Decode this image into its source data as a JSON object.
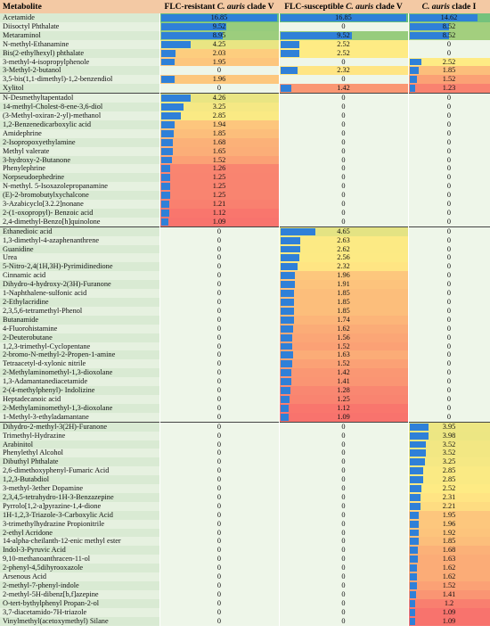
{
  "headers": {
    "metabolite": "Metabolite",
    "col1": "FLC-resistant C. auris clade V",
    "col2": "FLC-susceptible C. auris clade V",
    "col3": "C. auris clade I"
  },
  "max_value": 16.85,
  "rows": [
    {
      "name": "Acetamide",
      "v": [
        "16.85",
        "16.85",
        "14.62"
      ]
    },
    {
      "name": "Diisoctyl Phthalate",
      "v": [
        "9.52",
        "0",
        "8.52"
      ]
    },
    {
      "name": "Metaraminol",
      "v": [
        "8.95",
        "9.52",
        "8.52"
      ]
    },
    {
      "name": "N-methyl-Ethanamine",
      "v": [
        "4.25",
        "2.52",
        "0"
      ]
    },
    {
      "name": "Bis(2-ethylhexyl) phthalate",
      "v": [
        "2.03",
        "2.52",
        "0"
      ]
    },
    {
      "name": "3-methyl-4-isopropylphenole",
      "v": [
        "1.95",
        "0",
        "2.52"
      ]
    },
    {
      "name": "3-Methyl-2-butanol",
      "v": [
        "0",
        "2.32",
        "1.85"
      ]
    },
    {
      "name": "3,5-bis(1,1-dimethyl)-1,2-benzendiol",
      "v": [
        "1.96",
        "0",
        "1.52"
      ]
    },
    {
      "name": "Xylitol",
      "v": [
        "0",
        "1.42",
        "1.23"
      ]
    },
    {
      "name": "N-Desmethyltapentadol",
      "v": [
        "4.26",
        "0",
        "0"
      ]
    },
    {
      "name": "14-methyl-Cholest-8-ene-3,6-diol",
      "v": [
        "3.25",
        "0",
        "0"
      ]
    },
    {
      "name": "(3-Methyl-oxiran-2-yl)-methanol",
      "v": [
        "2.85",
        "0",
        "0"
      ]
    },
    {
      "name": "1,2-Benzenedicarboxylic acid",
      "v": [
        "1.94",
        "0",
        "0"
      ]
    },
    {
      "name": "Amidephrine",
      "v": [
        "1.85",
        "0",
        "0"
      ]
    },
    {
      "name": "2-Isopropoxyethylamine",
      "v": [
        "1.68",
        "0",
        "0"
      ]
    },
    {
      "name": "Methyl valerate",
      "v": [
        "1.65",
        "0",
        "0"
      ]
    },
    {
      "name": "3-hydroxy-2-Butanone",
      "v": [
        "1.52",
        "0",
        "0"
      ]
    },
    {
      "name": "Phenylephrine",
      "v": [
        "1.26",
        "0",
        "0"
      ]
    },
    {
      "name": "Norpseudoephedrine",
      "v": [
        "1.25",
        "0",
        "0"
      ]
    },
    {
      "name": "N-methyl. 5-Isoxazolepropanamine",
      "v": [
        "1.25",
        "0",
        "0"
      ]
    },
    {
      "name": "(E)-2-bromobutylxychalcone",
      "v": [
        "1.25",
        "0",
        "0"
      ]
    },
    {
      "name": "3-Azabicyclo[3.2.2]nonane",
      "v": [
        "1.21",
        "0",
        "0"
      ]
    },
    {
      "name": "2-(1-oxopropyl)- Benzoic acid",
      "v": [
        "1.12",
        "0",
        "0"
      ]
    },
    {
      "name": "2,4-dimethyl-Benzo[h]quinolone",
      "v": [
        "1.09",
        "0",
        "0"
      ]
    },
    {
      "name": "Ethanedioic acid",
      "v": [
        "0",
        "4.65",
        "0"
      ]
    },
    {
      "name": "1,3-dimethyl-4-azaphenanthrene",
      "v": [
        "0",
        "2.63",
        "0"
      ]
    },
    {
      "name": "Guanidine",
      "v": [
        "0",
        "2.62",
        "0"
      ]
    },
    {
      "name": "Urea",
      "v": [
        "0",
        "2.56",
        "0"
      ]
    },
    {
      "name": "5-Nitro-2,4(1H,3H)-Pyrimidinedione",
      "v": [
        "0",
        "2.32",
        "0"
      ]
    },
    {
      "name": "Cinnamic acid",
      "v": [
        "0",
        "1.96",
        "0"
      ]
    },
    {
      "name": "Dihydro-4-hydroxy-2(3H)-Furanone",
      "v": [
        "0",
        "1.91",
        "0"
      ]
    },
    {
      "name": "1-Naphthalene-sulfonic acid",
      "v": [
        "0",
        "1.85",
        "0"
      ]
    },
    {
      "name": "2-Ethylacridine",
      "v": [
        "0",
        "1.85",
        "0"
      ]
    },
    {
      "name": "2,3,5,6-tetramethyl-Phenol",
      "v": [
        "0",
        "1.85",
        "0"
      ]
    },
    {
      "name": "Butanamide",
      "v": [
        "0",
        "1.74",
        "0"
      ]
    },
    {
      "name": "4-Fluorohistamine",
      "v": [
        "0",
        "1.62",
        "0"
      ]
    },
    {
      "name": "2-Deuterobutane",
      "v": [
        "0",
        "1.56",
        "0"
      ]
    },
    {
      "name": "1,2,3-trimethyl-Cyclopentane",
      "v": [
        "0",
        "1.52",
        "0"
      ]
    },
    {
      "name": "2-bromo-N-methyl-2-Propen-1-amine",
      "v": [
        "0",
        "1.63",
        "0"
      ]
    },
    {
      "name": "Tetraacetyl-d-xylonic nitrile",
      "v": [
        "0",
        "1.52",
        "0"
      ]
    },
    {
      "name": "2-Methylaminomethyl-1,3-dioxolane",
      "v": [
        "0",
        "1.42",
        "0"
      ]
    },
    {
      "name": "1,3-Adamantanediacetamide",
      "v": [
        "0",
        "1.41",
        "0"
      ]
    },
    {
      "name": "2-(4-methylphenyl)- Indolizine",
      "v": [
        "0",
        "1.28",
        "0"
      ]
    },
    {
      "name": "Heptadecanoic acid",
      "v": [
        "0",
        "1.25",
        "0"
      ]
    },
    {
      "name": "2-Methylaminomethyl-1,3-dioxolane",
      "v": [
        "0",
        "1.12",
        "0"
      ]
    },
    {
      "name": "1-Methyl-3-ethyladamantane",
      "v": [
        "0",
        "1.09",
        "0"
      ]
    },
    {
      "name": "Dihydro-2-methyl-3(2H)-Furanone",
      "v": [
        "0",
        "0",
        "3.95"
      ]
    },
    {
      "name": "Trimethyl-Hydrazine",
      "v": [
        "0",
        "0",
        "3.98"
      ]
    },
    {
      "name": "Arabinitol",
      "v": [
        "0",
        "0",
        "3.52"
      ]
    },
    {
      "name": "Phenylethyl Alcohol",
      "v": [
        "0",
        "0",
        "3.52"
      ]
    },
    {
      "name": "Dibuthyl Phthalate",
      "v": [
        "0",
        "0",
        "3.25"
      ]
    },
    {
      "name": "2,6-dimethoxyphenyl-Fumaric Acid",
      "v": [
        "0",
        "0",
        "2.85"
      ]
    },
    {
      "name": "1,2,3-Butabdiol",
      "v": [
        "0",
        "0",
        "2.85"
      ]
    },
    {
      "name": "3-methyl-3ether Dopamine",
      "v": [
        "0",
        "0",
        "2.52"
      ]
    },
    {
      "name": "2,3,4,5-tetrahydro-1H-3-Benzazepine",
      "v": [
        "0",
        "0",
        "2.31"
      ]
    },
    {
      "name": "Pyrrolo[1,2-a]pyrazine-1,4-dione",
      "v": [
        "0",
        "0",
        "2.21"
      ]
    },
    {
      "name": "1H-1,2,3-Triazole-3-Carboxylic Acid",
      "v": [
        "0",
        "0",
        "1.95"
      ]
    },
    {
      "name": "3-trimethylhydrazine Propionitrile",
      "v": [
        "0",
        "0",
        "1.96"
      ]
    },
    {
      "name": "2-ethyl Acridone",
      "v": [
        "0",
        "0",
        "1.92"
      ]
    },
    {
      "name": "14-alpha-cheilanth-12-enic methyl ester",
      "v": [
        "0",
        "0",
        "1.85"
      ]
    },
    {
      "name": "Indol-3-Pyruvic Acid",
      "v": [
        "0",
        "0",
        "1.68"
      ]
    },
    {
      "name": "9,10-methanoanthracen-11-ol",
      "v": [
        "0",
        "0",
        "1.63"
      ]
    },
    {
      "name": "2-phenyl-4,5dihyrooxazole",
      "v": [
        "0",
        "0",
        "1.62"
      ]
    },
    {
      "name": "Arsenous Acid",
      "v": [
        "0",
        "0",
        "1.62"
      ]
    },
    {
      "name": "2-methyl-7-phenyl-indole",
      "v": [
        "0",
        "0",
        "1.52"
      ]
    },
    {
      "name": "2-methyl-5H-dibenz[b,f]azepine",
      "v": [
        "0",
        "0",
        "1.41"
      ]
    },
    {
      "name": "O-tert-bythylphenyl Propan-2-ol",
      "v": [
        "0",
        "0",
        "1.2"
      ]
    },
    {
      "name": "3,7-diacetamido-7H-triazole",
      "v": [
        "0",
        "0",
        "1.09"
      ]
    },
    {
      "name": "Vinylmethyl(acetoxymethyl) Silane",
      "v": [
        "0",
        "0",
        "1.09"
      ]
    }
  ]
}
